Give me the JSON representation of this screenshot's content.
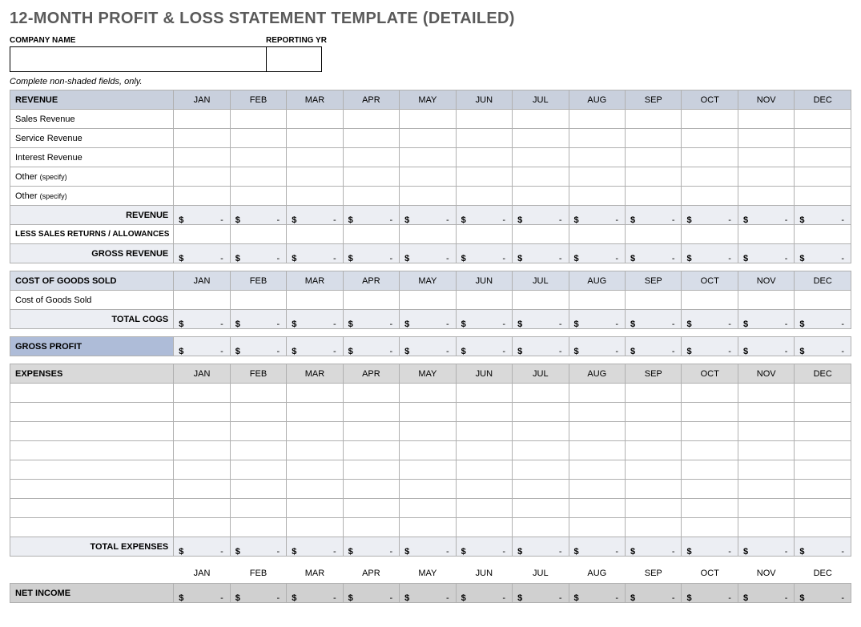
{
  "title": "12-MONTH PROFIT & LOSS STATEMENT TEMPLATE (DETAILED)",
  "meta": {
    "company_label": "COMPANY NAME",
    "year_label": "REPORTING YR",
    "company_value": "",
    "year_value": ""
  },
  "instruction": "Complete non-shaded fields, only.",
  "months": [
    "JAN",
    "FEB",
    "MAR",
    "APR",
    "MAY",
    "JUN",
    "JUL",
    "AUG",
    "SEP",
    "OCT",
    "NOV",
    "DEC"
  ],
  "colors": {
    "revenue_header_bg": "#c9d0dd",
    "subtotal_bg": "#eceef3",
    "cogs_header_bg": "#d7dde8",
    "gross_profit_bg": "#aebcd8",
    "expenses_header_bg": "#d9d9d9",
    "net_income_bg": "#d0d0d0",
    "border": "#b0b0b0",
    "white": "#ffffff"
  },
  "revenue": {
    "header": "REVENUE",
    "rows": [
      "Sales Revenue",
      "Service Revenue",
      "Interest Revenue",
      "Other (specify)",
      "Other (specify)"
    ],
    "subtotal_label": "REVENUE",
    "less_label": "LESS SALES RETURNS / ALLOWANCES",
    "gross_label": "GROSS REVENUE"
  },
  "cogs": {
    "header": "COST OF GOODS SOLD",
    "rows": [
      "Cost of Goods Sold"
    ],
    "total_label": "TOTAL COGS"
  },
  "gross_profit": {
    "label": "GROSS PROFIT"
  },
  "expenses": {
    "header": "EXPENSES",
    "blank_rows": 8,
    "total_label": "TOTAL EXPENSES"
  },
  "net_income": {
    "label": "NET INCOME"
  },
  "dollar_placeholder": {
    "symbol": "$",
    "dash": "-"
  }
}
